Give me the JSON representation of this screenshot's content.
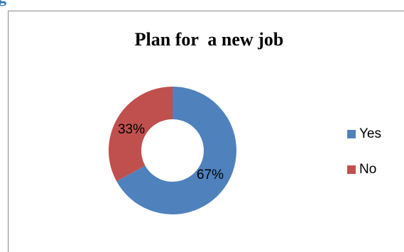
{
  "chart_data": {
    "type": "pie",
    "title": "Plan for  a new job",
    "categories": [
      "Yes",
      "No"
    ],
    "values": [
      67,
      33
    ],
    "labels": [
      "67%",
      "33%"
    ],
    "colors": [
      "#4f81bd",
      "#c0504d"
    ],
    "legend_position": "right",
    "donut": true
  }
}
